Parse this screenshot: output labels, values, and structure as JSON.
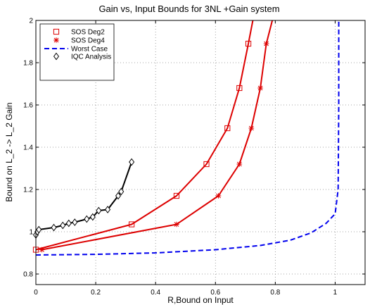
{
  "chart_data": {
    "type": "line",
    "title": "Gain vs, Input Bounds for 3NL +Gain system",
    "xlabel": "R,Bound on Input",
    "ylabel": "Bound on L_2 -> L_2 Gain",
    "xlim": [
      0,
      1.1
    ],
    "ylim": [
      0.75,
      2.0
    ],
    "xticks": [
      "0",
      "0.2",
      "0.4",
      "0.6",
      "0.8",
      "1"
    ],
    "xtick_values": [
      0,
      0.2,
      0.4,
      0.6,
      0.8,
      1.0
    ],
    "yticks": [
      "0.8",
      "1",
      "1.2",
      "1.4",
      "1.6",
      "1.8",
      "2"
    ],
    "ytick_values": [
      0.8,
      1.0,
      1.2,
      1.4,
      1.6,
      1.8,
      2.0
    ],
    "grid": true,
    "legend_position": "top-left",
    "series": [
      {
        "name": "SOS Deg2",
        "color": "#dd0000",
        "marker": "square",
        "x": [
          0.0,
          0.32,
          0.47,
          0.57,
          0.64,
          0.68,
          0.71,
          0.725
        ],
        "y": [
          0.915,
          1.035,
          1.17,
          1.32,
          1.49,
          1.68,
          1.89,
          2.0
        ]
      },
      {
        "name": "SOS Deg4",
        "color": "#dd0000",
        "marker": "asterisk",
        "x": [
          0.02,
          0.47,
          0.61,
          0.68,
          0.72,
          0.75,
          0.77,
          0.79
        ],
        "y": [
          0.915,
          1.035,
          1.17,
          1.32,
          1.49,
          1.68,
          1.89,
          2.0
        ]
      },
      {
        "name": "Worst Case",
        "color": "#0000ee",
        "marker": "none",
        "dash": true,
        "x": [
          0.0,
          0.2,
          0.4,
          0.6,
          0.75,
          0.85,
          0.92,
          0.97,
          1.0,
          1.01,
          1.012,
          1.012
        ],
        "y": [
          0.89,
          0.893,
          0.9,
          0.915,
          0.935,
          0.96,
          0.995,
          1.04,
          1.085,
          1.2,
          1.6,
          2.0
        ]
      },
      {
        "name": "IQC Analysis",
        "color": "#000000",
        "marker": "diamond",
        "x": [
          0.0,
          0.005,
          0.01,
          0.06,
          0.09,
          0.11,
          0.13,
          0.17,
          0.19,
          0.21,
          0.24,
          0.275,
          0.285,
          0.32
        ],
        "y": [
          0.985,
          1.0,
          1.01,
          1.02,
          1.03,
          1.04,
          1.045,
          1.06,
          1.07,
          1.1,
          1.105,
          1.17,
          1.19,
          1.33
        ]
      }
    ]
  }
}
